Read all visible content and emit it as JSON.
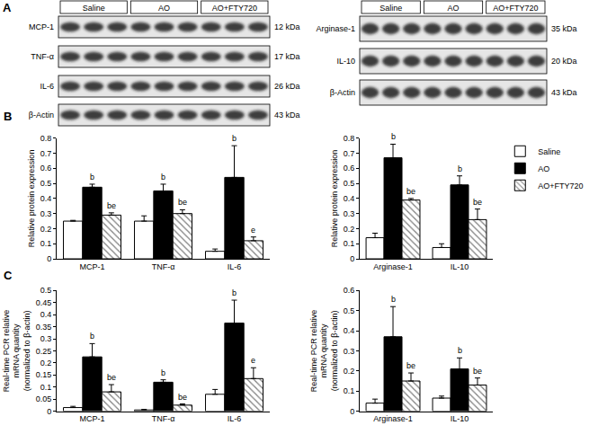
{
  "panel_labels": [
    "A",
    "B",
    "C"
  ],
  "western_blot": {
    "groups": [
      "Saline",
      "AO",
      "AO+FTY720"
    ],
    "left": [
      {
        "label": "MCP-1",
        "size": "12 kDa"
      },
      {
        "label": "TNF-α",
        "size": "17 kDa"
      },
      {
        "label": "IL-6",
        "size": "26 kDa"
      },
      {
        "label": "β-Actin",
        "size": "43 kDa"
      }
    ],
    "right": [
      {
        "label": "Arginase-1",
        "size": "35 kDa"
      },
      {
        "label": "IL-10",
        "size": "20 kDa"
      },
      {
        "label": "β-Actin",
        "size": "43 kDa"
      }
    ]
  },
  "chart_data": [
    {
      "type": "bar",
      "y_label": [
        "Relative protein expression"
      ],
      "categories": [
        "MCP-1",
        "TNF-α",
        "IL-6"
      ],
      "ylim": [
        0,
        0.8
      ],
      "yticks": [
        0,
        0.1,
        0.2,
        0.3,
        0.4,
        0.5,
        0.6,
        0.7,
        0.8
      ],
      "grid": false,
      "series": [
        {
          "name": "Saline",
          "color": "#ffffff",
          "values": [
            0.25,
            0.25,
            0.05
          ],
          "errors": [
            0.005,
            0.035,
            0.015
          ]
        },
        {
          "name": "AO",
          "color": "#000000",
          "values": [
            0.475,
            0.45,
            0.54
          ],
          "errors": [
            0.02,
            0.045,
            0.21
          ],
          "letters": [
            "b",
            "b",
            "b"
          ]
        },
        {
          "name": "AO+FTY720",
          "color": "#ffffff",
          "marker": "hatched",
          "values": [
            0.29,
            0.3,
            0.12
          ],
          "errors": [
            0.015,
            0.025,
            0.025
          ],
          "letters": [
            "be",
            "be",
            "e"
          ]
        }
      ]
    },
    {
      "type": "bar",
      "y_label": [
        "Relative protein expression"
      ],
      "categories": [
        "Arginase-1",
        "IL-10"
      ],
      "ylim": [
        0,
        0.8
      ],
      "yticks": [
        0,
        0.1,
        0.2,
        0.3,
        0.4,
        0.5,
        0.6,
        0.7,
        0.8
      ],
      "grid": false,
      "legend": "right",
      "series": [
        {
          "name": "Saline",
          "color": "#ffffff",
          "values": [
            0.14,
            0.075
          ],
          "errors": [
            0.03,
            0.025
          ]
        },
        {
          "name": "AO",
          "color": "#000000",
          "values": [
            0.67,
            0.49
          ],
          "errors": [
            0.09,
            0.06
          ],
          "letters": [
            "b",
            "b"
          ]
        },
        {
          "name": "AO+FTY720",
          "color": "#ffffff",
          "marker": "hatched",
          "values": [
            0.39,
            0.26
          ],
          "errors": [
            0.01,
            0.07
          ],
          "letters": [
            "be",
            "be"
          ]
        }
      ]
    },
    {
      "type": "bar",
      "y_label": [
        "Real-time PCR relative",
        "mRNA quantity",
        "(normalized to β-actin)"
      ],
      "categories": [
        "MCP-1",
        "TNF-α",
        "IL-6"
      ],
      "ylim": [
        0,
        0.5
      ],
      "yticks": [
        0,
        0.05,
        0.1,
        0.15,
        0.2,
        0.25,
        0.3,
        0.35,
        0.4,
        0.45,
        0.5
      ],
      "grid": false,
      "series": [
        {
          "name": "Saline",
          "color": "#ffffff",
          "values": [
            0.015,
            0.005,
            0.07
          ],
          "errors": [
            0.005,
            0.002,
            0.02
          ]
        },
        {
          "name": "AO",
          "color": "#000000",
          "values": [
            0.225,
            0.12,
            0.365
          ],
          "errors": [
            0.055,
            0.01,
            0.095
          ],
          "letters": [
            "b",
            "b",
            "b"
          ]
        },
        {
          "name": "AO+FTY720",
          "color": "#ffffff",
          "marker": "hatched",
          "values": [
            0.08,
            0.025,
            0.135
          ],
          "errors": [
            0.03,
            0.005,
            0.045
          ],
          "letters": [
            "be",
            "be",
            "e"
          ]
        }
      ]
    },
    {
      "type": "bar",
      "y_label": [
        "Real-time PCR relative",
        "mRNA quantity",
        "(normalized to β-actin)"
      ],
      "categories": [
        "Arginase-1",
        "IL-10"
      ],
      "ylim": [
        0,
        0.6
      ],
      "yticks": [
        0,
        0.1,
        0.2,
        0.3,
        0.4,
        0.5,
        0.6
      ],
      "grid": false,
      "series": [
        {
          "name": "Saline",
          "color": "#ffffff",
          "values": [
            0.04,
            0.065
          ],
          "errors": [
            0.02,
            0.01
          ]
        },
        {
          "name": "AO",
          "color": "#000000",
          "values": [
            0.37,
            0.21
          ],
          "errors": [
            0.15,
            0.055
          ],
          "letters": [
            "b",
            "b"
          ]
        },
        {
          "name": "AO+FTY720",
          "color": "#ffffff",
          "marker": "hatched",
          "values": [
            0.15,
            0.13
          ],
          "errors": [
            0.04,
            0.035
          ],
          "letters": [
            "be",
            "be"
          ]
        }
      ]
    }
  ]
}
